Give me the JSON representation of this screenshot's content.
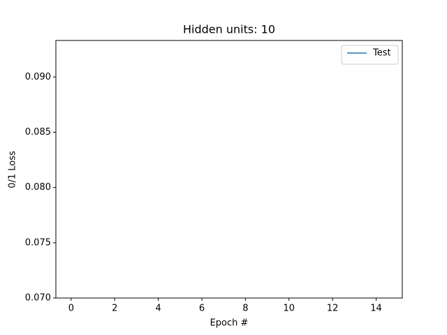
{
  "chart_data": {
    "type": "line",
    "title": "Hidden units: 10",
    "x_label": "Epoch #",
    "y_label": "0/1 Loss",
    "series": [
      {
        "name": "Test",
        "color": "#1f77b4",
        "values": []
      }
    ],
    "xlim": [
      -0.7,
      15.2
    ],
    "xticks": [
      0,
      2,
      4,
      6,
      8,
      10,
      12,
      14
    ],
    "ylim": [
      0.07,
      0.0933
    ],
    "yticks": [
      {
        "value": 0.07,
        "label": "0.070"
      },
      {
        "value": 0.075,
        "label": "0.075"
      },
      {
        "value": 0.08,
        "label": "0.080"
      },
      {
        "value": 0.085,
        "label": "0.085"
      },
      {
        "value": 0.09,
        "label": "0.090"
      }
    ],
    "legend": "upper right",
    "grid": false
  }
}
